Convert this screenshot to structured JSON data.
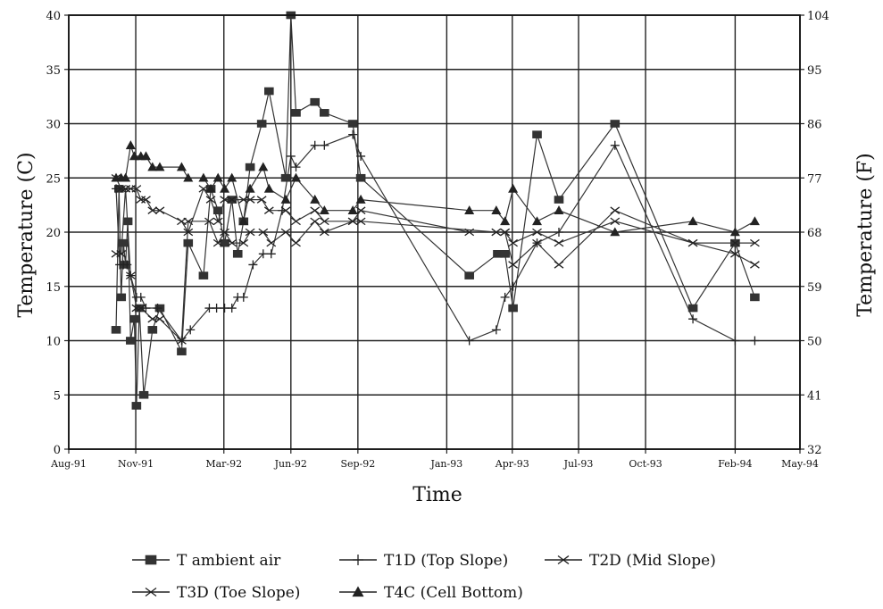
{
  "chart_data": {
    "type": "line",
    "xlabel": "Time",
    "ylabel": "Temperature (C)",
    "ylabel_right": "Temperature (F)",
    "ylim": [
      0,
      40
    ],
    "yticks": [
      0,
      5,
      10,
      15,
      20,
      25,
      30,
      35,
      40
    ],
    "yticks_right": [
      "32",
      "41",
      "50",
      "59",
      "68",
      "77",
      "86",
      "95",
      "104"
    ],
    "xlim": [
      "1991-08-01",
      "1994-05-01"
    ],
    "xtick_labels": [
      "Aug-91",
      "Nov-91",
      "Mar-92",
      "Jun-92",
      "Sep-92",
      "Jan-93",
      "Apr-93",
      "Jul-93",
      "Oct-93",
      "Feb-94",
      "May-94"
    ],
    "xtick_dates": [
      "1991-08-01",
      "1991-11-01",
      "1992-03-01",
      "1992-06-01",
      "1992-09-01",
      "1993-01-01",
      "1993-04-01",
      "1993-07-01",
      "1993-10-01",
      "1994-02-01",
      "1994-05-01"
    ],
    "grid": true,
    "legend_position": "bottom",
    "series": [
      {
        "name": "T ambient air",
        "marker": "square",
        "points": [
          [
            "1991-10-05",
            11
          ],
          [
            "1991-10-09",
            24
          ],
          [
            "1991-10-12",
            14
          ],
          [
            "1991-10-15",
            19
          ],
          [
            "1991-10-18",
            17
          ],
          [
            "1991-10-21",
            21
          ],
          [
            "1991-10-25",
            10
          ],
          [
            "1991-10-30",
            12
          ],
          [
            "1991-11-02",
            4
          ],
          [
            "1991-11-06",
            13
          ],
          [
            "1991-11-12",
            5
          ],
          [
            "1991-11-24",
            11
          ],
          [
            "1991-12-04",
            13
          ],
          [
            "1992-01-03",
            9
          ],
          [
            "1992-01-12",
            19
          ],
          [
            "1992-02-02",
            16
          ],
          [
            "1992-02-12",
            24
          ],
          [
            "1992-02-22",
            22
          ],
          [
            "1992-03-02",
            19
          ],
          [
            "1992-03-12",
            23
          ],
          [
            "1992-03-20",
            18
          ],
          [
            "1992-03-28",
            21
          ],
          [
            "1992-04-06",
            26
          ],
          [
            "1992-04-22",
            30
          ],
          [
            "1992-05-02",
            33
          ],
          [
            "1992-05-25",
            25
          ],
          [
            "1992-06-01",
            40
          ],
          [
            "1992-06-08",
            31
          ],
          [
            "1992-07-04",
            32
          ],
          [
            "1992-07-17",
            31
          ],
          [
            "1992-08-25",
            30
          ],
          [
            "1992-09-05",
            25
          ],
          [
            "1993-02-01",
            16
          ],
          [
            "1993-03-12",
            18
          ],
          [
            "1993-03-22",
            18
          ],
          [
            "1993-04-02",
            13
          ],
          [
            "1993-05-05",
            29
          ],
          [
            "1993-06-04",
            23
          ],
          [
            "1993-08-20",
            30
          ],
          [
            "1993-12-05",
            13
          ],
          [
            "1994-02-01",
            19
          ],
          [
            "1994-02-28",
            14
          ]
        ]
      },
      {
        "name": "T1D (Top Slope)",
        "marker": "plus",
        "points": [
          [
            "1991-10-05",
            24
          ],
          [
            "1991-10-10",
            17
          ],
          [
            "1991-10-15",
            17
          ],
          [
            "1991-10-20",
            17
          ],
          [
            "1991-10-25",
            16
          ],
          [
            "1991-11-02",
            14
          ],
          [
            "1991-11-08",
            14
          ],
          [
            "1991-11-15",
            13
          ],
          [
            "1991-12-01",
            13
          ],
          [
            "1992-01-03",
            10
          ],
          [
            "1992-01-15",
            11
          ],
          [
            "1992-02-10",
            13
          ],
          [
            "1992-02-20",
            13
          ],
          [
            "1992-03-02",
            13
          ],
          [
            "1992-03-12",
            13
          ],
          [
            "1992-03-20",
            14
          ],
          [
            "1992-03-28",
            14
          ],
          [
            "1992-04-10",
            17
          ],
          [
            "1992-04-24",
            18
          ],
          [
            "1992-05-05",
            18
          ],
          [
            "1992-05-20",
            22
          ],
          [
            "1992-06-01",
            27
          ],
          [
            "1992-06-08",
            26
          ],
          [
            "1992-07-04",
            28
          ],
          [
            "1992-07-17",
            28
          ],
          [
            "1992-08-25",
            29
          ],
          [
            "1992-09-05",
            27
          ],
          [
            "1993-02-01",
            10
          ],
          [
            "1993-03-10",
            11
          ],
          [
            "1993-03-22",
            14
          ],
          [
            "1993-04-02",
            15
          ],
          [
            "1993-05-05",
            19
          ],
          [
            "1993-06-04",
            20
          ],
          [
            "1993-08-20",
            28
          ],
          [
            "1993-12-05",
            12
          ],
          [
            "1994-02-01",
            10
          ],
          [
            "1994-02-28",
            10
          ]
        ]
      },
      {
        "name": "T2D (Mid Slope)",
        "marker": "x",
        "points": [
          [
            "1991-10-05",
            18
          ],
          [
            "1991-10-12",
            18
          ],
          [
            "1991-10-18",
            24
          ],
          [
            "1991-10-25",
            16
          ],
          [
            "1991-11-02",
            13
          ],
          [
            "1991-11-08",
            13
          ],
          [
            "1991-11-24",
            12
          ],
          [
            "1991-12-04",
            12
          ],
          [
            "1992-01-03",
            10
          ],
          [
            "1992-01-12",
            21
          ],
          [
            "1992-02-10",
            21
          ],
          [
            "1992-02-22",
            19
          ],
          [
            "1992-03-02",
            20
          ],
          [
            "1992-03-12",
            19
          ],
          [
            "1992-03-28",
            19
          ],
          [
            "1992-04-06",
            20
          ],
          [
            "1992-04-24",
            20
          ],
          [
            "1992-05-05",
            19
          ],
          [
            "1992-05-25",
            20
          ],
          [
            "1992-06-08",
            19
          ],
          [
            "1992-07-04",
            21
          ],
          [
            "1992-07-17",
            20
          ],
          [
            "1992-08-25",
            21
          ],
          [
            "1992-09-05",
            21
          ],
          [
            "1993-03-10",
            20
          ],
          [
            "1993-03-22",
            20
          ],
          [
            "1993-04-02",
            17
          ],
          [
            "1993-05-05",
            19
          ],
          [
            "1993-06-04",
            17
          ],
          [
            "1993-08-20",
            22
          ],
          [
            "1993-12-05",
            19
          ],
          [
            "1994-02-01",
            18
          ],
          [
            "1994-02-28",
            17
          ]
        ]
      },
      {
        "name": "T3D (Toe Slope)",
        "marker": "x",
        "points": [
          [
            "1991-10-05",
            25
          ],
          [
            "1991-10-12",
            24
          ],
          [
            "1991-10-18",
            24
          ],
          [
            "1991-10-25",
            24
          ],
          [
            "1991-11-02",
            24
          ],
          [
            "1991-11-08",
            23
          ],
          [
            "1991-11-15",
            23
          ],
          [
            "1991-11-24",
            22
          ],
          [
            "1991-12-04",
            22
          ],
          [
            "1992-01-03",
            21
          ],
          [
            "1992-01-12",
            20
          ],
          [
            "1992-02-02",
            24
          ],
          [
            "1992-02-12",
            23
          ],
          [
            "1992-02-22",
            21
          ],
          [
            "1992-03-02",
            23
          ],
          [
            "1992-03-12",
            23
          ],
          [
            "1992-03-28",
            23
          ],
          [
            "1992-04-06",
            23
          ],
          [
            "1992-04-22",
            23
          ],
          [
            "1992-05-02",
            22
          ],
          [
            "1992-05-25",
            22
          ],
          [
            "1992-06-08",
            21
          ],
          [
            "1992-07-04",
            22
          ],
          [
            "1992-07-17",
            21
          ],
          [
            "1992-08-25",
            21
          ],
          [
            "1992-09-05",
            22
          ],
          [
            "1993-02-01",
            20
          ],
          [
            "1993-03-10",
            20
          ],
          [
            "1993-03-22",
            20
          ],
          [
            "1993-04-02",
            19
          ],
          [
            "1993-05-05",
            20
          ],
          [
            "1993-06-04",
            19
          ],
          [
            "1993-08-20",
            21
          ],
          [
            "1993-12-05",
            19
          ],
          [
            "1994-02-01",
            19
          ],
          [
            "1994-02-28",
            19
          ]
        ]
      },
      {
        "name": "T4C (Cell Bottom)",
        "marker": "triangle",
        "points": [
          [
            "1991-10-05",
            25
          ],
          [
            "1991-10-12",
            25
          ],
          [
            "1991-10-18",
            25
          ],
          [
            "1991-10-25",
            28
          ],
          [
            "1991-10-30",
            27
          ],
          [
            "1991-11-08",
            27
          ],
          [
            "1991-11-15",
            27
          ],
          [
            "1991-11-24",
            26
          ],
          [
            "1991-12-04",
            26
          ],
          [
            "1992-01-03",
            26
          ],
          [
            "1992-01-12",
            25
          ],
          [
            "1992-02-02",
            25
          ],
          [
            "1992-02-12",
            24
          ],
          [
            "1992-02-22",
            25
          ],
          [
            "1992-03-02",
            24
          ],
          [
            "1992-03-12",
            25
          ],
          [
            "1992-03-28",
            21
          ],
          [
            "1992-04-06",
            24
          ],
          [
            "1992-04-24",
            26
          ],
          [
            "1992-05-02",
            24
          ],
          [
            "1992-05-25",
            23
          ],
          [
            "1992-06-08",
            25
          ],
          [
            "1992-07-04",
            23
          ],
          [
            "1992-07-17",
            22
          ],
          [
            "1992-08-25",
            22
          ],
          [
            "1992-09-05",
            23
          ],
          [
            "1993-02-01",
            22
          ],
          [
            "1993-03-10",
            22
          ],
          [
            "1993-03-22",
            21
          ],
          [
            "1993-04-02",
            24
          ],
          [
            "1993-05-05",
            21
          ],
          [
            "1993-06-04",
            22
          ],
          [
            "1993-08-20",
            20
          ],
          [
            "1993-12-05",
            21
          ],
          [
            "1994-02-01",
            20
          ],
          [
            "1994-02-28",
            21
          ]
        ]
      }
    ]
  }
}
